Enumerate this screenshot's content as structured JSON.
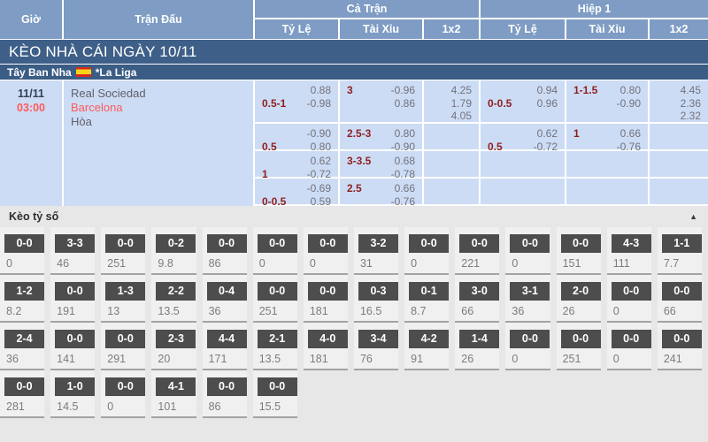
{
  "header": {
    "time_col": "Giờ",
    "match_col": "Trận Đấu",
    "full_time": "Cả Trận",
    "first_half": "Hiệp 1",
    "sub": {
      "handicap": "Tỷ Lệ",
      "over_under": "Tài Xỉu",
      "one_x_two": "1x2"
    }
  },
  "day_bar": {
    "title": "KÈO NHÀ CÁI NGÀY 10/11"
  },
  "league": {
    "country": "Tây Ban Nha",
    "name": "*La Liga",
    "flag": "spain-flag"
  },
  "match": {
    "date": "11/11",
    "time": "03:00",
    "home": "Real Sociedad",
    "away": "Barcelona",
    "draw": "Hòa"
  },
  "odds_rows": [
    {
      "ft_hdp": [
        [
          "",
          "0.88"
        ],
        [
          "0.5-1",
          "-0.98"
        ]
      ],
      "ft_ou": [
        [
          "3",
          "-0.96"
        ],
        [
          "",
          "0.86"
        ]
      ],
      "ft_1x2": [
        "4.25",
        "1.79",
        "4.05"
      ],
      "h1_hdp": [
        [
          "",
          "0.94"
        ],
        [
          "0-0.5",
          "0.96"
        ]
      ],
      "h1_ou": [
        [
          "1-1.5",
          "0.80"
        ],
        [
          "",
          "-0.90"
        ]
      ],
      "h1_1x2": [
        "4.45",
        "2.36",
        "2.32"
      ]
    },
    {
      "ft_hdp": [
        [
          "",
          "-0.90"
        ],
        [
          "0.5",
          "0.80"
        ]
      ],
      "ft_ou": [
        [
          "2.5-3",
          "0.80"
        ],
        [
          "",
          "-0.90"
        ]
      ],
      "ft_1x2": [],
      "h1_hdp": [
        [
          "",
          "0.62"
        ],
        [
          "0.5",
          "-0.72"
        ]
      ],
      "h1_ou": [
        [
          "1",
          "0.66"
        ],
        [
          "",
          "-0.76"
        ]
      ],
      "h1_1x2": []
    },
    {
      "ft_hdp": [
        [
          "",
          "0.62"
        ],
        [
          "1",
          "-0.72"
        ]
      ],
      "ft_ou": [
        [
          "3-3.5",
          "0.68"
        ],
        [
          "",
          "-0.78"
        ]
      ],
      "ft_1x2": [],
      "h1_hdp": [],
      "h1_ou": [],
      "h1_1x2": []
    },
    {
      "ft_hdp": [
        [
          "",
          "-0.69"
        ],
        [
          "0-0.5",
          "0.59"
        ]
      ],
      "ft_ou": [
        [
          "2.5",
          "0.66"
        ],
        [
          "",
          "-0.76"
        ]
      ],
      "ft_1x2": [],
      "h1_hdp": [],
      "h1_ou": [],
      "h1_1x2": []
    }
  ],
  "score_section": {
    "title": "Kèo tỷ số",
    "collapse_icon": "▲"
  },
  "score_rows": [
    [
      [
        "0-0",
        "0"
      ],
      [
        "3-3",
        "46"
      ],
      [
        "0-0",
        "251"
      ],
      [
        "0-2",
        "9.8"
      ],
      [
        "0-0",
        "86"
      ],
      [
        "0-0",
        "0"
      ],
      [
        "0-0",
        "0"
      ],
      [
        "3-2",
        "31"
      ],
      [
        "0-0",
        "0"
      ],
      [
        "0-0",
        "221"
      ],
      [
        "0-0",
        "0"
      ],
      [
        "0-0",
        "151"
      ],
      [
        "4-3",
        "111"
      ],
      [
        "1-1",
        "7.7"
      ]
    ],
    [
      [
        "1-2",
        "8.2"
      ],
      [
        "0-0",
        "191"
      ],
      [
        "1-3",
        "13"
      ],
      [
        "2-2",
        "13.5"
      ],
      [
        "0-4",
        "36"
      ],
      [
        "0-0",
        "251"
      ],
      [
        "0-0",
        "181"
      ],
      [
        "0-3",
        "16.5"
      ],
      [
        "0-1",
        "8.7"
      ],
      [
        "3-0",
        "66"
      ],
      [
        "3-1",
        "36"
      ],
      [
        "2-0",
        "26"
      ],
      [
        "0-0",
        "0"
      ],
      [
        "0-0",
        "66"
      ]
    ],
    [
      [
        "2-4",
        "36"
      ],
      [
        "0-0",
        "141"
      ],
      [
        "0-0",
        "291"
      ],
      [
        "2-3",
        "20"
      ],
      [
        "4-4",
        "171"
      ],
      [
        "2-1",
        "13.5"
      ],
      [
        "4-0",
        "181"
      ],
      [
        "3-4",
        "76"
      ],
      [
        "4-2",
        "91"
      ],
      [
        "1-4",
        "26"
      ],
      [
        "0-0",
        "0"
      ],
      [
        "0-0",
        "251"
      ],
      [
        "0-0",
        "0"
      ],
      [
        "0-0",
        "241"
      ]
    ],
    [
      [
        "0-0",
        "281"
      ],
      [
        "1-0",
        "14.5"
      ],
      [
        "0-0",
        "0"
      ],
      [
        "4-1",
        "101"
      ],
      [
        "0-0",
        "86"
      ],
      [
        "0-0",
        "15.5"
      ]
    ]
  ],
  "colors": {
    "header_blue": "#7e9cc4",
    "bar_navy": "#3e5f88",
    "odds_bg": "#cddcf5",
    "handicap_maroon": "#8e1f1f",
    "highlight_red": "#ff5a5a",
    "score_box_gray": "#4d4d4d"
  }
}
